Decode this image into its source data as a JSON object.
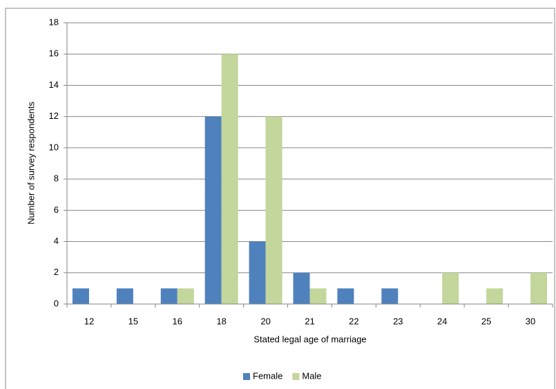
{
  "chart_data": {
    "type": "bar",
    "x_label": "Stated legal age of marriage",
    "y_label": "Number of survey respondents",
    "categories": [
      "12",
      "15",
      "16",
      "18",
      "20",
      "21",
      "22",
      "23",
      "24",
      "25",
      "30"
    ],
    "series": [
      {
        "name": "Female",
        "color": "#4f81bd",
        "values": [
          1,
          1,
          1,
          12,
          4,
          2,
          1,
          1,
          0,
          0,
          0
        ]
      },
      {
        "name": "Male",
        "color": "#c3d69b",
        "values": [
          0,
          0,
          1,
          16,
          12,
          1,
          0,
          0,
          2,
          1,
          2
        ]
      }
    ],
    "ylim": [
      0,
      18
    ],
    "yticks": [
      0,
      2,
      4,
      6,
      8,
      10,
      12,
      14,
      16,
      18
    ],
    "grid": true,
    "legend": "bottom"
  }
}
